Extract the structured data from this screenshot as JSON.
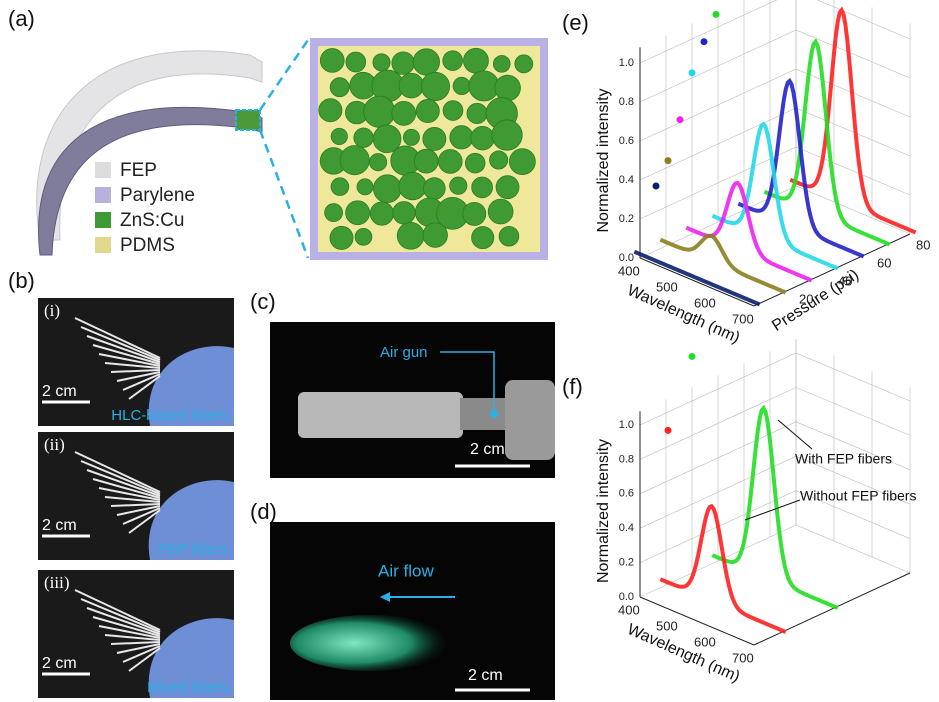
{
  "panels": {
    "a": {
      "label": "(a)",
      "legend": [
        "FEP",
        "Parylene",
        "ZnS:Cu",
        "PDMS"
      ]
    },
    "b": {
      "label": "(b)",
      "photos": [
        {
          "label": "(i)",
          "scale": "2 cm",
          "caption": "HLC-based fibers"
        },
        {
          "label": "(ii)",
          "scale": "2 cm",
          "caption": "FEP fibers"
        },
        {
          "label": "(iii)",
          "scale": "2 cm",
          "caption": "Mixed fibers"
        }
      ]
    },
    "c": {
      "label": "(c)",
      "annotation": "Air gun",
      "scale": "2 cm"
    },
    "d": {
      "label": "(d)",
      "annotation": "Air flow",
      "scale": "2 cm"
    },
    "e": {
      "label": "(e)",
      "y_label": "Normalized intensity",
      "y_ticks": [
        "0.0",
        "0.2",
        "0.4",
        "0.6",
        "0.8",
        "1.0"
      ],
      "x_label": "Wavelength (nm)",
      "x_ticks": [
        "400",
        "500",
        "600",
        "700"
      ],
      "z_label": "Pressure (psi)",
      "z_ticks": [
        "20",
        "40",
        "60",
        "80"
      ]
    },
    "f": {
      "label": "(f)",
      "y_label": "Normalized intensity",
      "y_ticks": [
        "0.0",
        "0.2",
        "0.4",
        "0.6",
        "0.8",
        "1.0"
      ],
      "x_label": "Wavelength (nm)",
      "x_ticks": [
        "400",
        "500",
        "600",
        "700"
      ],
      "annotations": [
        "With FEP fibers",
        "Without FEP fibers"
      ]
    }
  }
}
